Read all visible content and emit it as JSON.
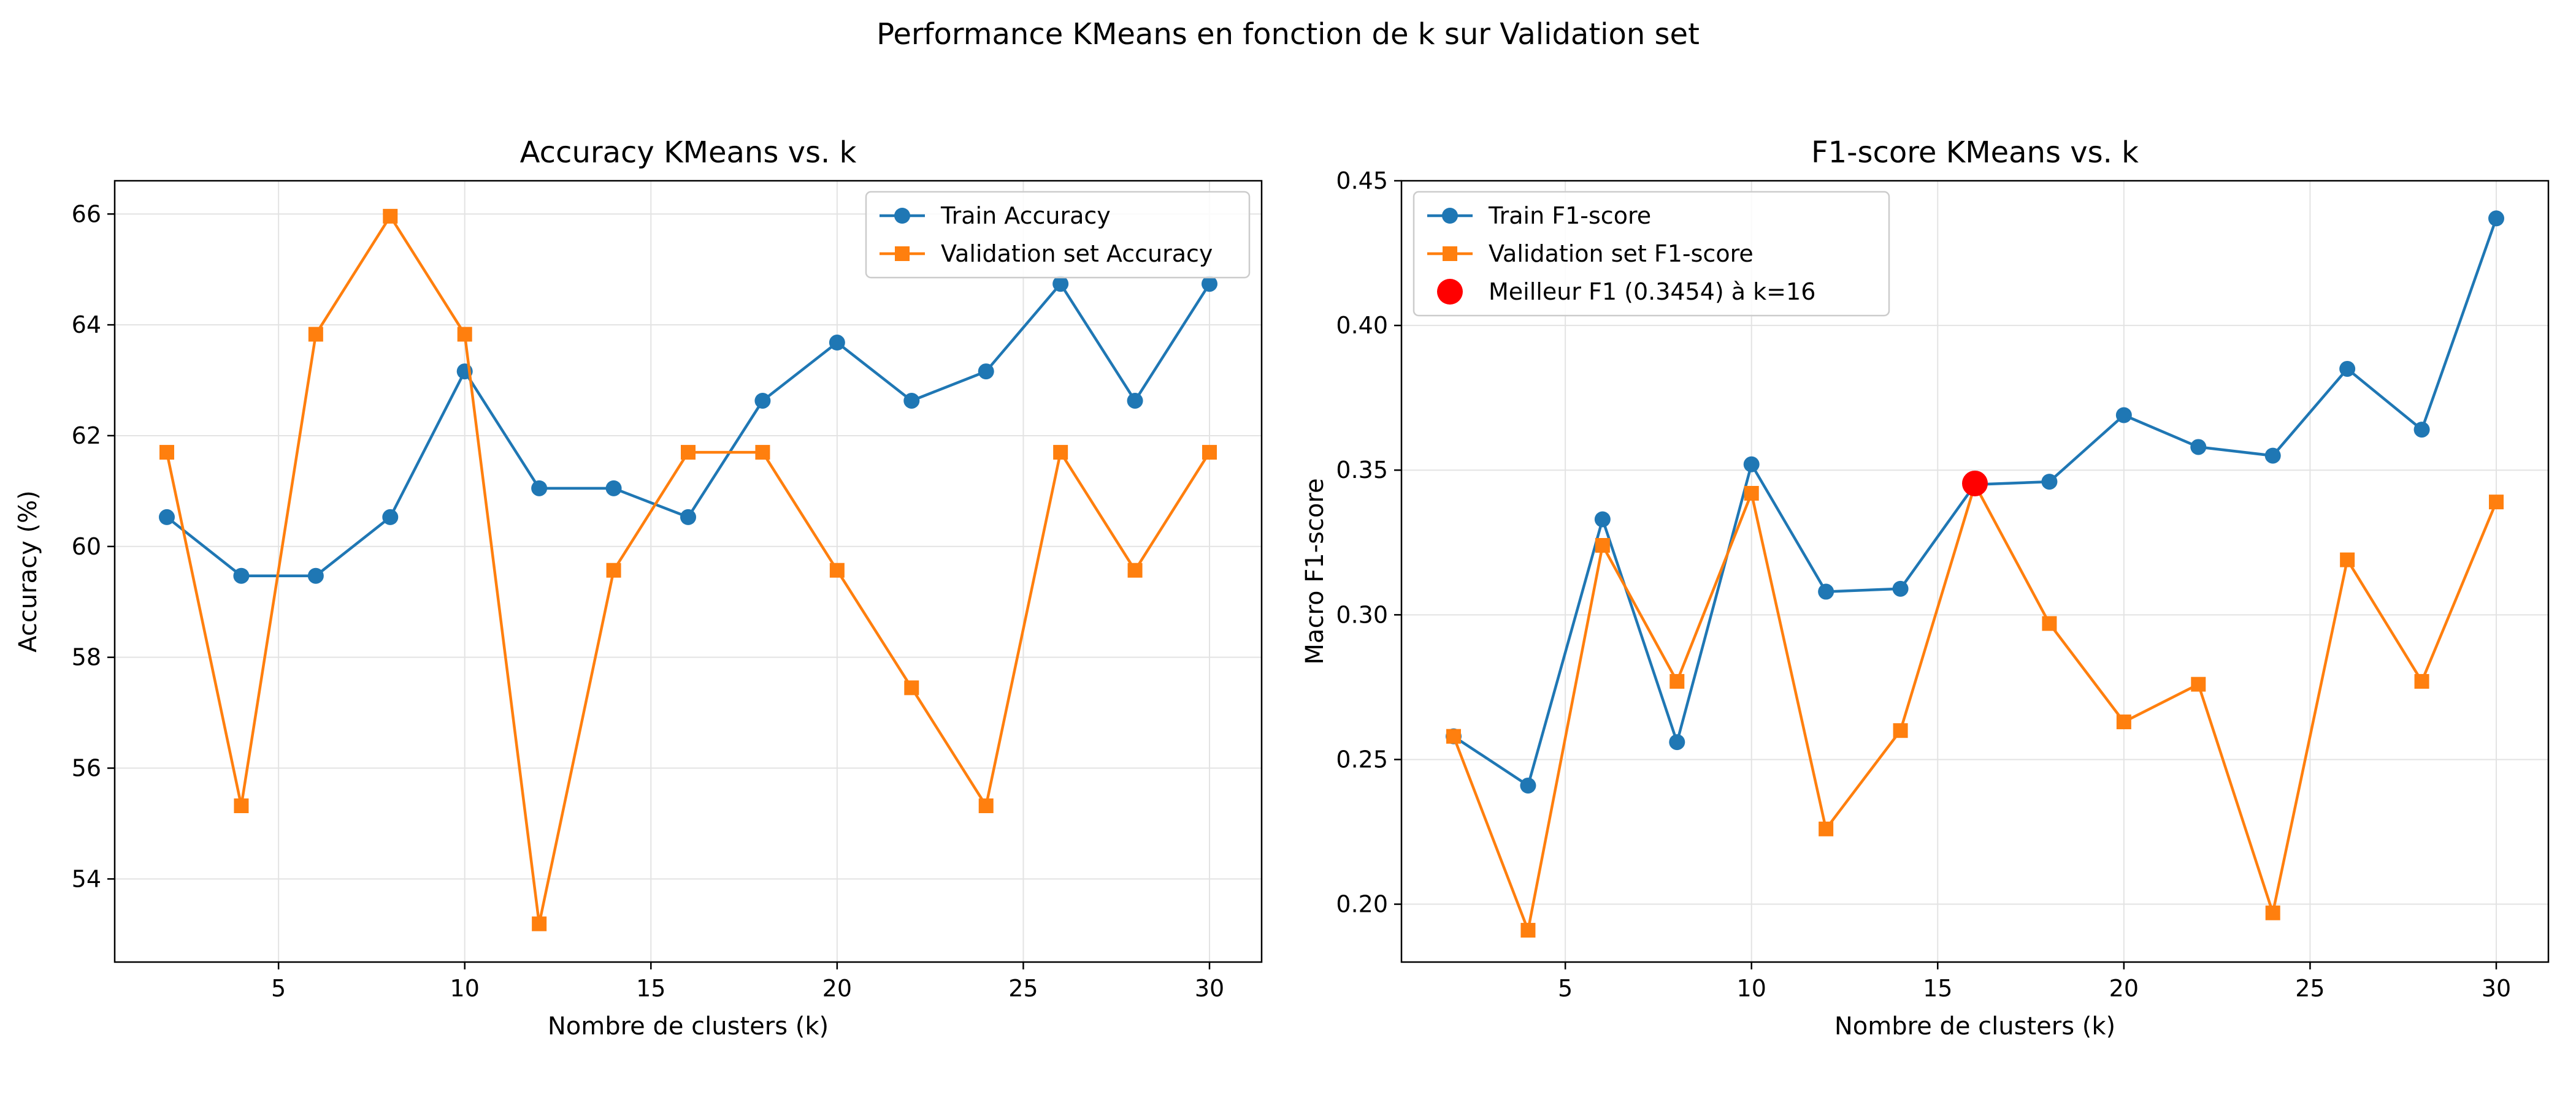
{
  "suptitle": "Performance KMeans en fonction de k sur Validation set",
  "colors": {
    "train": "#1f77b4",
    "val": "#ff7f0e",
    "best": "#ff0000",
    "grid": "#e3e3e3"
  },
  "chart_data": [
    {
      "type": "line",
      "title": "Accuracy KMeans vs. k",
      "xlabel": "Nombre de clusters (k)",
      "ylabel": "Accuracy (%)",
      "xlim": [
        0.6,
        31.4
      ],
      "ylim": [
        52.5,
        66.6
      ],
      "xticks": [
        5,
        10,
        15,
        20,
        25,
        30
      ],
      "yticks": [
        54,
        56,
        58,
        60,
        62,
        64,
        66
      ],
      "tick_decimals": 0,
      "grid": true,
      "legend_position": "upper right",
      "x": [
        2,
        4,
        6,
        8,
        10,
        12,
        14,
        16,
        18,
        20,
        22,
        24,
        26,
        28,
        30
      ],
      "series": [
        {
          "name": "Train Accuracy",
          "marker": "circle",
          "color_key": "train",
          "values": [
            60.53,
            59.47,
            59.47,
            60.53,
            63.16,
            61.05,
            61.05,
            60.53,
            62.63,
            63.68,
            62.63,
            63.16,
            64.74,
            62.63,
            64.74
          ]
        },
        {
          "name": "Validation set Accuracy",
          "marker": "square",
          "color_key": "val",
          "values": [
            61.7,
            55.32,
            63.83,
            65.96,
            63.83,
            53.19,
            59.57,
            61.7,
            61.7,
            59.57,
            57.45,
            55.32,
            61.7,
            59.57,
            61.7
          ]
        }
      ]
    },
    {
      "type": "line",
      "title": "F1-score KMeans vs. k",
      "xlabel": "Nombre de clusters (k)",
      "ylabel": "Macro F1-score",
      "xlim": [
        0.6,
        31.4
      ],
      "ylim": [
        0.18,
        0.45
      ],
      "xticks": [
        5,
        10,
        15,
        20,
        25,
        30
      ],
      "yticks": [
        0.2,
        0.25,
        0.3,
        0.35,
        0.4,
        0.45
      ],
      "tick_decimals": 2,
      "grid": true,
      "legend_position": "upper left",
      "x": [
        2,
        4,
        6,
        8,
        10,
        12,
        14,
        16,
        18,
        20,
        22,
        24,
        26,
        28,
        30
      ],
      "series": [
        {
          "name": "Train F1-score",
          "marker": "circle",
          "color_key": "train",
          "values": [
            0.258,
            0.241,
            0.333,
            0.256,
            0.352,
            0.308,
            0.309,
            0.345,
            0.346,
            0.369,
            0.358,
            0.355,
            0.385,
            0.364,
            0.437
          ]
        },
        {
          "name": "Validation set F1-score",
          "marker": "square",
          "color_key": "val",
          "values": [
            0.258,
            0.191,
            0.324,
            0.277,
            0.342,
            0.226,
            0.26,
            0.345,
            0.297,
            0.263,
            0.276,
            0.197,
            0.319,
            0.277,
            0.339
          ]
        }
      ],
      "highlight": {
        "name": "Meilleur F1 (0.3454) à k=16",
        "x": 16,
        "y": 0.3454,
        "color_key": "best"
      }
    }
  ]
}
